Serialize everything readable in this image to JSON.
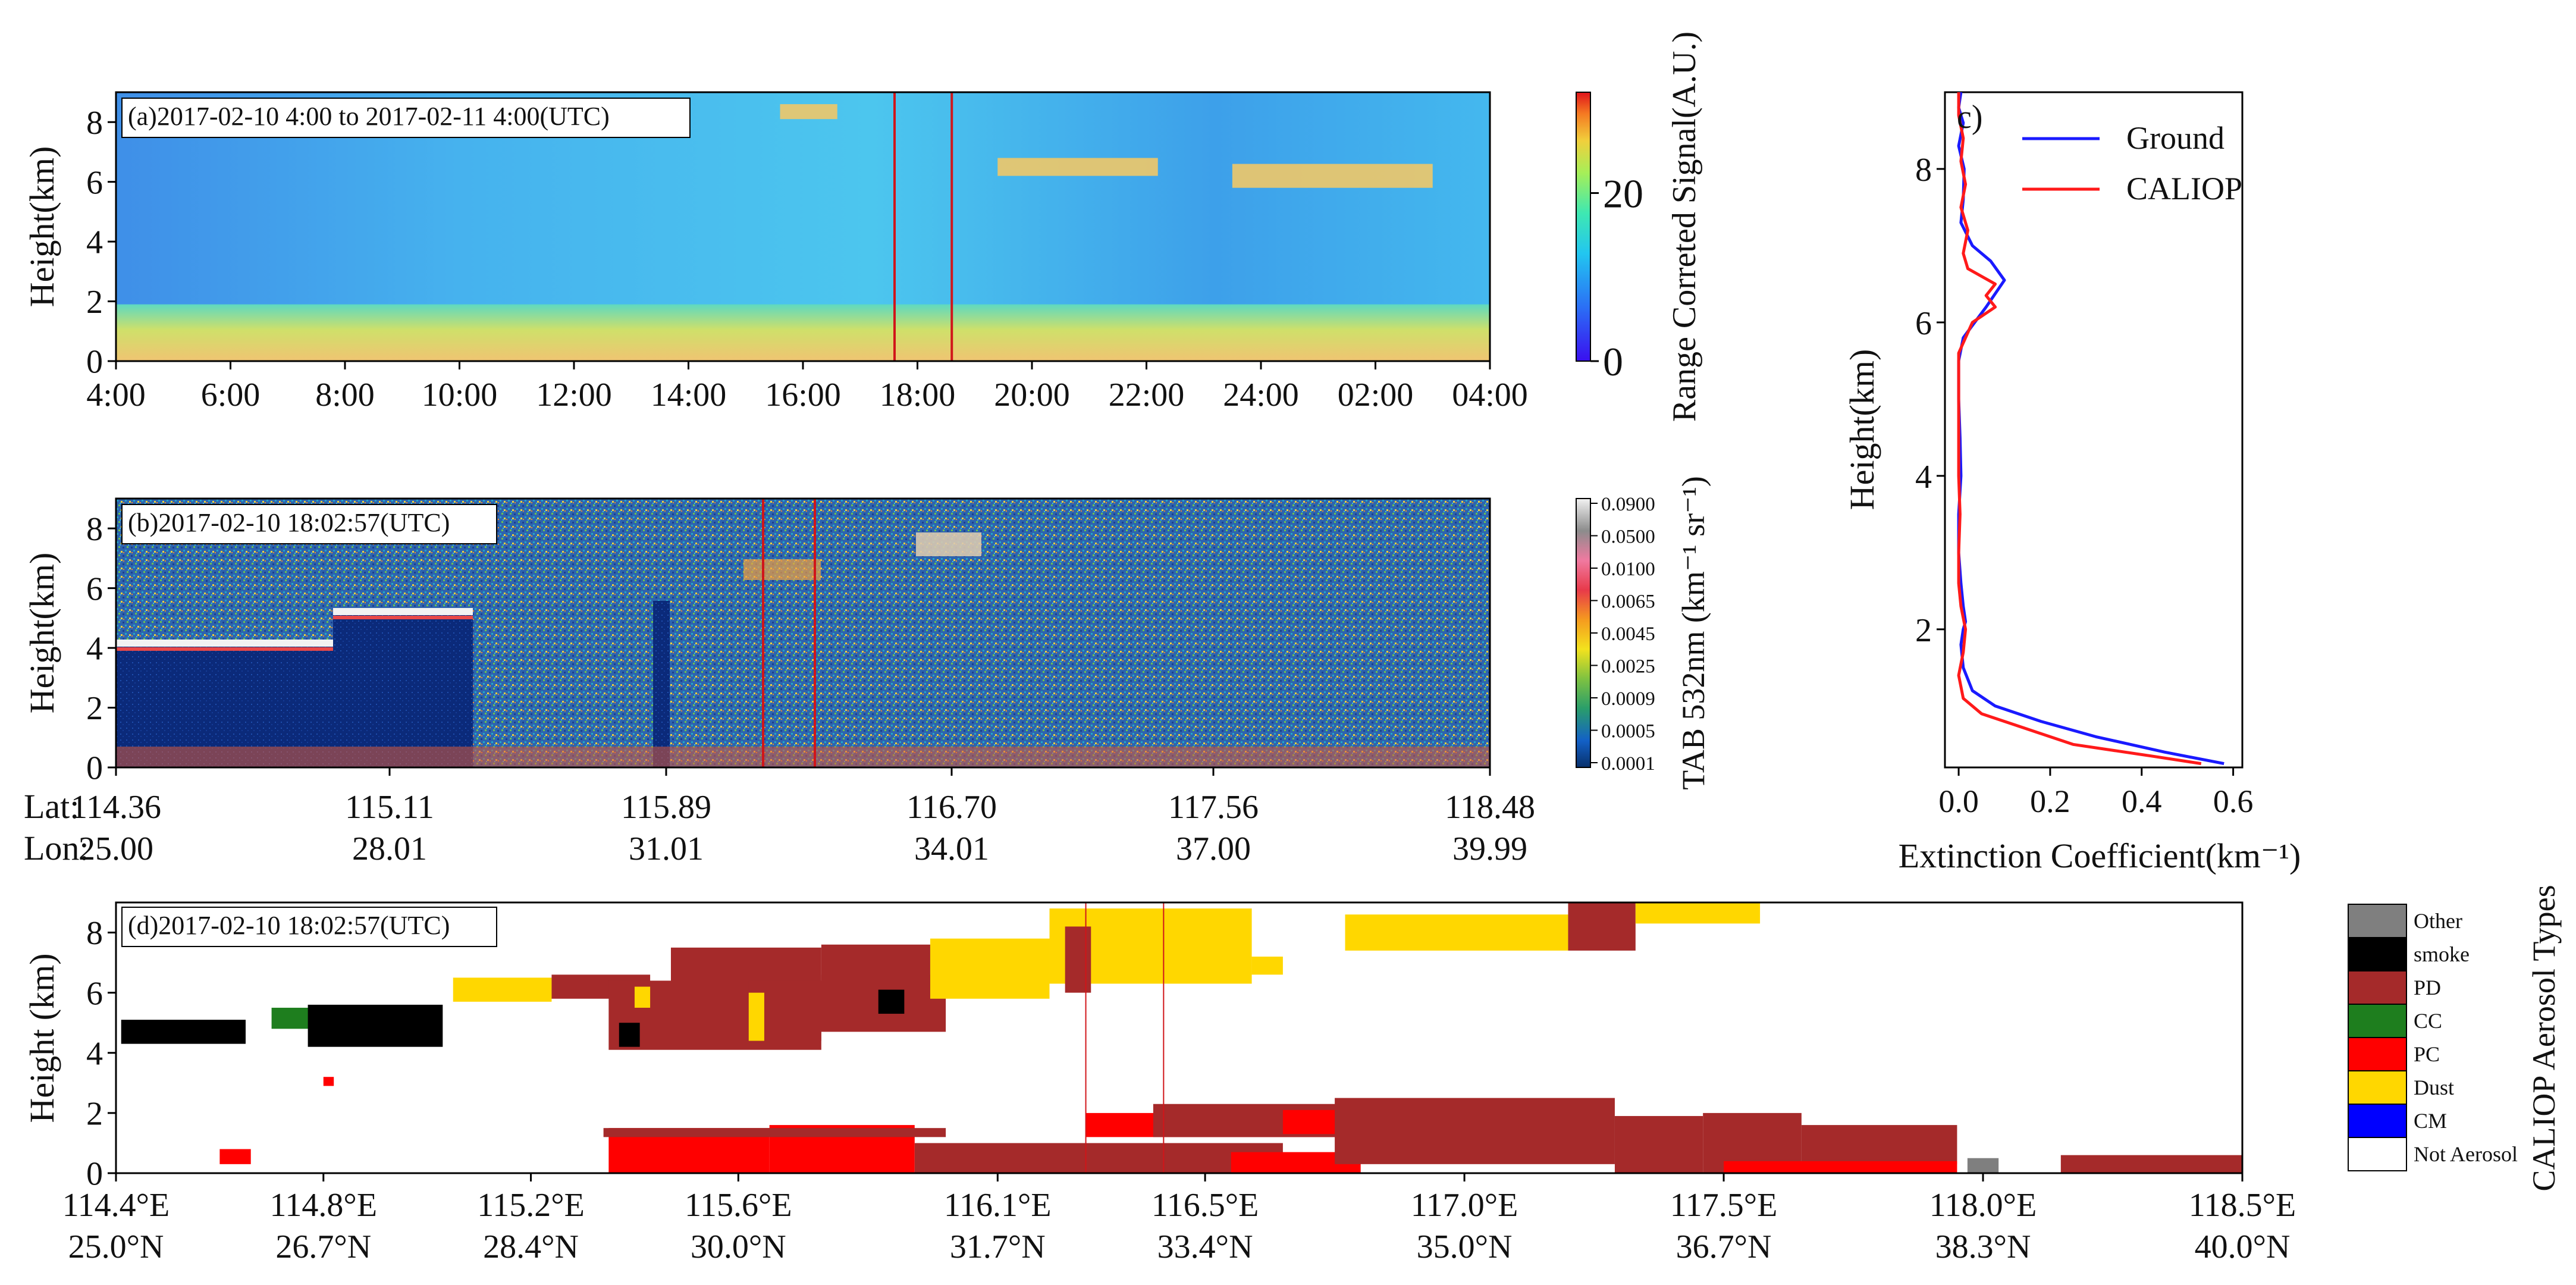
{
  "colors": {
    "rgbBase": "#3fa6ec",
    "rgbCloud": "#f0c868",
    "rgbLow": "#e8c075",
    "tabBg": "#2a5fa8",
    "tabDense": "#0b2a7a",
    "ground": "#1a1aff",
    "caliop": "#ff1a1a",
    "redLine": "#d0161a",
    "types": {
      "Other": "#7f7f7f",
      "smoke": "#000000",
      "PD": "#a52a2a",
      "CC": "#1e7e1e",
      "PC": "#ff0000",
      "Dust": "#ffd700",
      "CM": "#0000ff",
      "Not Aerosol": "#ffffff"
    }
  },
  "chart_data": [
    {
      "id": "a",
      "type": "heatmap",
      "annotation": "(a)2017-02-10 4:00 to 2017-02-11 4:00(UTC)",
      "ylabel": "Height(km)",
      "yticks": [
        "0",
        "2",
        "4",
        "6",
        "8"
      ],
      "ylim": [
        0,
        9
      ],
      "xticks": [
        "4:00",
        "6:00",
        "8:00",
        "10:00",
        "12:00",
        "14:00",
        "16:00",
        "18:00",
        "20:00",
        "22:00",
        "24:00",
        "02:00",
        "04:00"
      ],
      "xlim_hours": [
        4,
        28
      ],
      "marked_times_hours": [
        17.6,
        18.6
      ],
      "colorbar": {
        "label": "Range Correted Signal(A.U.)",
        "ticks": [
          "0",
          "20"
        ],
        "range": [
          0,
          32
        ]
      },
      "features": [
        {
          "name": "boundary-layer",
          "start": 4,
          "end": 28,
          "bottom": 0,
          "top": 1.9
        },
        {
          "name": "cloud-1",
          "start": 15.6,
          "end": 16.6,
          "bottom": 8.1,
          "top": 8.6
        },
        {
          "name": "cloud-2",
          "start": 19.4,
          "end": 22.2,
          "bottom": 6.2,
          "top": 6.8
        },
        {
          "name": "cloud-3",
          "start": 23.5,
          "end": 27.0,
          "bottom": 5.8,
          "top": 6.6
        }
      ]
    },
    {
      "id": "b",
      "type": "heatmap",
      "annotation": "(b)2017-02-10 18:02:57(UTC)",
      "ylabel": "Height(km)",
      "yticks": [
        "0",
        "2",
        "4",
        "6",
        "8"
      ],
      "ylim": [
        0,
        9
      ],
      "lat_label": "Lat:",
      "lon_label": "Lon:",
      "lat_ticks": [
        "114.36",
        "115.11",
        "115.89",
        "116.70",
        "117.56",
        "118.48"
      ],
      "lon_ticks": [
        "25.00",
        "28.01",
        "31.01",
        "34.01",
        "37.00",
        "39.99"
      ],
      "colorbar": {
        "label": "TAB 532nm (km⁻¹ sr⁻¹)",
        "ticks": [
          "0.0001",
          "0.0005",
          "0.0009",
          "0.0025",
          "0.0045",
          "0.0065",
          "0.0100",
          "0.0500",
          "0.0900"
        ]
      }
    },
    {
      "id": "c",
      "type": "line",
      "annotation": "c)",
      "xlabel": "Extinction Coefficient(km⁻¹)",
      "ylabel": "Height(km)",
      "xlim": [
        -0.03,
        0.62
      ],
      "ylim": [
        0.2,
        9.0
      ],
      "xticks": [
        "0.0",
        "0.2",
        "0.4",
        "0.6"
      ],
      "yticks": [
        "2",
        "4",
        "6",
        "8"
      ],
      "series": [
        {
          "name": "Ground",
          "x": [
            0.58,
            0.45,
            0.3,
            0.18,
            0.08,
            0.03,
            0.01,
            0.005,
            0.01,
            0.015,
            0.01,
            0.005,
            0.0,
            0.0,
            0.005,
            0.003,
            0.0,
            0.0,
            0.01,
            0.06,
            0.1,
            0.07,
            0.03,
            0.005,
            0.01,
            0.012,
            0.0,
            0.01,
            0.0,
            0.005
          ],
          "y": [
            0.25,
            0.4,
            0.6,
            0.8,
            1.0,
            1.2,
            1.5,
            1.8,
            2.0,
            2.1,
            2.3,
            2.6,
            3.0,
            3.5,
            4.0,
            4.5,
            5.0,
            5.5,
            5.8,
            6.2,
            6.55,
            6.8,
            7.0,
            7.3,
            7.6,
            8.0,
            8.3,
            8.6,
            8.8,
            9.0
          ]
        },
        {
          "name": "CALIOP",
          "x": [
            0.53,
            0.42,
            0.25,
            0.15,
            0.05,
            0.01,
            0.0,
            0.01,
            0.015,
            0.005,
            0.0,
            0.0,
            0.003,
            0.0,
            0.0,
            0.0,
            0.0,
            0.03,
            0.08,
            0.06,
            0.08,
            0.02,
            0.01,
            0.02,
            0.005,
            0.015,
            0.005,
            0.01,
            0.0,
            0.0
          ],
          "y": [
            0.25,
            0.35,
            0.5,
            0.7,
            0.9,
            1.1,
            1.4,
            1.7,
            2.0,
            2.3,
            2.6,
            3.0,
            3.5,
            4.0,
            4.5,
            5.0,
            5.6,
            6.0,
            6.2,
            6.35,
            6.5,
            6.7,
            6.9,
            7.2,
            7.5,
            7.8,
            8.1,
            8.4,
            8.7,
            9.0
          ]
        }
      ]
    },
    {
      "id": "d",
      "type": "heatmap",
      "annotation": "(d)2017-02-10 18:02:57(UTC)",
      "ylabel": "Height (km)",
      "yticks": [
        "0",
        "2",
        "4",
        "6",
        "8"
      ],
      "ylim": [
        0,
        9
      ],
      "xlim": [
        114.4,
        118.5
      ],
      "lon_ticks": [
        "114.4°E",
        "114.8°E",
        "115.2°E",
        "115.6°E",
        "116.1°E",
        "116.5°E",
        "117.0°E",
        "117.5°E",
        "118.0°E",
        "118.5°E"
      ],
      "lat_ticks": [
        "25.0°N",
        "26.7°N",
        "28.4°N",
        "30.0°N",
        "31.7°N",
        "33.4°N",
        "35.0°N",
        "36.7°N",
        "38.3°N",
        "40.0°N"
      ],
      "marked_lon": [
        116.27,
        116.42
      ],
      "legend_title": "CALIOP Aerosol Types",
      "legend": [
        "Other",
        "smoke",
        "PD",
        "CC",
        "PC",
        "Dust",
        "CM",
        "Not Aerosol"
      ],
      "layers": [
        {
          "type": "smoke",
          "x0": 114.41,
          "x1": 114.65,
          "bottom": 4.3,
          "top": 5.1
        },
        {
          "type": "CC",
          "x0": 114.7,
          "x1": 114.88,
          "bottom": 4.8,
          "top": 5.5
        },
        {
          "type": "smoke",
          "x0": 114.77,
          "x1": 115.03,
          "bottom": 4.2,
          "top": 5.6
        },
        {
          "type": "PC",
          "x0": 114.6,
          "x1": 114.66,
          "bottom": 0.3,
          "top": 0.8
        },
        {
          "type": "PC",
          "x0": 114.8,
          "x1": 114.82,
          "bottom": 2.9,
          "top": 3.2
        },
        {
          "type": "Dust",
          "x0": 115.05,
          "x1": 115.24,
          "bottom": 5.7,
          "top": 6.5
        },
        {
          "type": "PD",
          "x0": 115.24,
          "x1": 115.43,
          "bottom": 5.8,
          "top": 6.6
        },
        {
          "type": "PD",
          "x0": 115.35,
          "x1": 115.76,
          "bottom": 4.1,
          "top": 6.4
        },
        {
          "type": "smoke",
          "x0": 115.37,
          "x1": 115.41,
          "bottom": 4.2,
          "top": 5.0
        },
        {
          "type": "Dust",
          "x0": 115.4,
          "x1": 115.43,
          "bottom": 5.5,
          "top": 6.2
        },
        {
          "type": "PD",
          "x0": 115.47,
          "x1": 115.76,
          "bottom": 4.4,
          "top": 7.5
        },
        {
          "type": "PD",
          "x0": 115.62,
          "x1": 115.76,
          "bottom": 4.7,
          "top": 6.4
        },
        {
          "type": "Dust",
          "x0": 115.62,
          "x1": 115.65,
          "bottom": 4.4,
          "top": 6.0
        },
        {
          "type": "PD",
          "x0": 115.76,
          "x1": 115.97,
          "bottom": 6.4,
          "top": 7.6
        },
        {
          "type": "PD",
          "x0": 115.76,
          "x1": 116.0,
          "bottom": 4.7,
          "top": 6.6
        },
        {
          "type": "smoke",
          "x0": 115.87,
          "x1": 115.92,
          "bottom": 5.3,
          "top": 6.1
        },
        {
          "type": "Dust",
          "x0": 115.97,
          "x1": 116.2,
          "bottom": 5.8,
          "top": 7.8
        },
        {
          "type": "Dust",
          "x0": 116.2,
          "x1": 116.59,
          "bottom": 6.3,
          "top": 8.8
        },
        {
          "type": "PD",
          "x0": 116.23,
          "x1": 116.28,
          "bottom": 6.0,
          "top": 8.2
        },
        {
          "type": "Dust",
          "x0": 116.59,
          "x1": 116.65,
          "bottom": 6.6,
          "top": 7.2
        },
        {
          "type": "Dust",
          "x0": 116.77,
          "x1": 117.2,
          "bottom": 7.4,
          "top": 8.6
        },
        {
          "type": "PD",
          "x0": 117.2,
          "x1": 117.33,
          "bottom": 7.4,
          "top": 9.0
        },
        {
          "type": "Dust",
          "x0": 117.33,
          "x1": 117.57,
          "bottom": 8.3,
          "top": 9.0
        },
        {
          "type": "PC",
          "x0": 115.35,
          "x1": 115.66,
          "bottom": 0.0,
          "top": 1.5
        },
        {
          "type": "PC",
          "x0": 115.66,
          "x1": 115.94,
          "bottom": 0.0,
          "top": 1.6
        },
        {
          "type": "PD",
          "x0": 115.34,
          "x1": 116.0,
          "bottom": 1.2,
          "top": 1.5
        },
        {
          "type": "PD",
          "x0": 115.94,
          "x1": 116.65,
          "bottom": 0.0,
          "top": 1.0
        },
        {
          "type": "PC",
          "x0": 116.27,
          "x1": 116.8,
          "bottom": 1.2,
          "top": 2.0
        },
        {
          "type": "PD",
          "x0": 116.4,
          "x1": 116.8,
          "bottom": 1.2,
          "top": 2.3
        },
        {
          "type": "PC",
          "x0": 116.55,
          "x1": 116.8,
          "bottom": 0.0,
          "top": 0.7
        },
        {
          "type": "PC",
          "x0": 116.65,
          "x1": 116.93,
          "bottom": 1.3,
          "top": 2.1
        },
        {
          "type": "PD",
          "x0": 116.75,
          "x1": 117.29,
          "bottom": 0.3,
          "top": 2.5
        },
        {
          "type": "PD",
          "x0": 117.29,
          "x1": 117.46,
          "bottom": 0.0,
          "top": 1.9
        },
        {
          "type": "PD",
          "x0": 117.46,
          "x1": 117.65,
          "bottom": 0.0,
          "top": 2.0
        },
        {
          "type": "PD",
          "x0": 117.65,
          "x1": 117.95,
          "bottom": 0.3,
          "top": 1.6
        },
        {
          "type": "PC",
          "x0": 117.5,
          "x1": 117.95,
          "bottom": 0.0,
          "top": 0.4
        },
        {
          "type": "Other",
          "x0": 117.97,
          "x1": 118.03,
          "bottom": 0.0,
          "top": 0.5
        },
        {
          "type": "PD",
          "x0": 118.15,
          "x1": 118.5,
          "bottom": 0.0,
          "top": 0.6
        }
      ]
    }
  ]
}
